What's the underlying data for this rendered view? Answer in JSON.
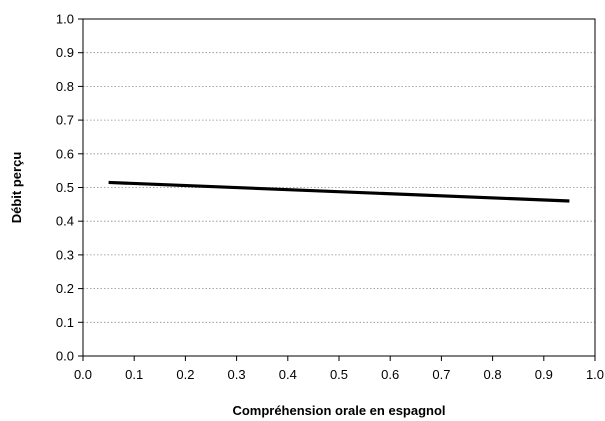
{
  "chart_data": {
    "type": "line",
    "title": "",
    "xlabel": "Compréhension orale en espagnol",
    "ylabel": "Débit perçu",
    "xlim": [
      0.0,
      1.0
    ],
    "ylim": [
      0.0,
      1.0
    ],
    "xticks": [
      "0.0",
      "0.1",
      "0.2",
      "0.3",
      "0.4",
      "0.5",
      "0.6",
      "0.7",
      "0.8",
      "0.9",
      "1.0"
    ],
    "yticks": [
      "0.0",
      "0.1",
      "0.2",
      "0.3",
      "0.4",
      "0.5",
      "0.6",
      "0.7",
      "0.8",
      "0.9",
      "1.0"
    ],
    "grid": "horizontal dotted",
    "legend": "none",
    "series": [
      {
        "x": [
          0.05,
          0.95
        ],
        "y": [
          0.515,
          0.46
        ],
        "color": "#000000"
      }
    ]
  }
}
